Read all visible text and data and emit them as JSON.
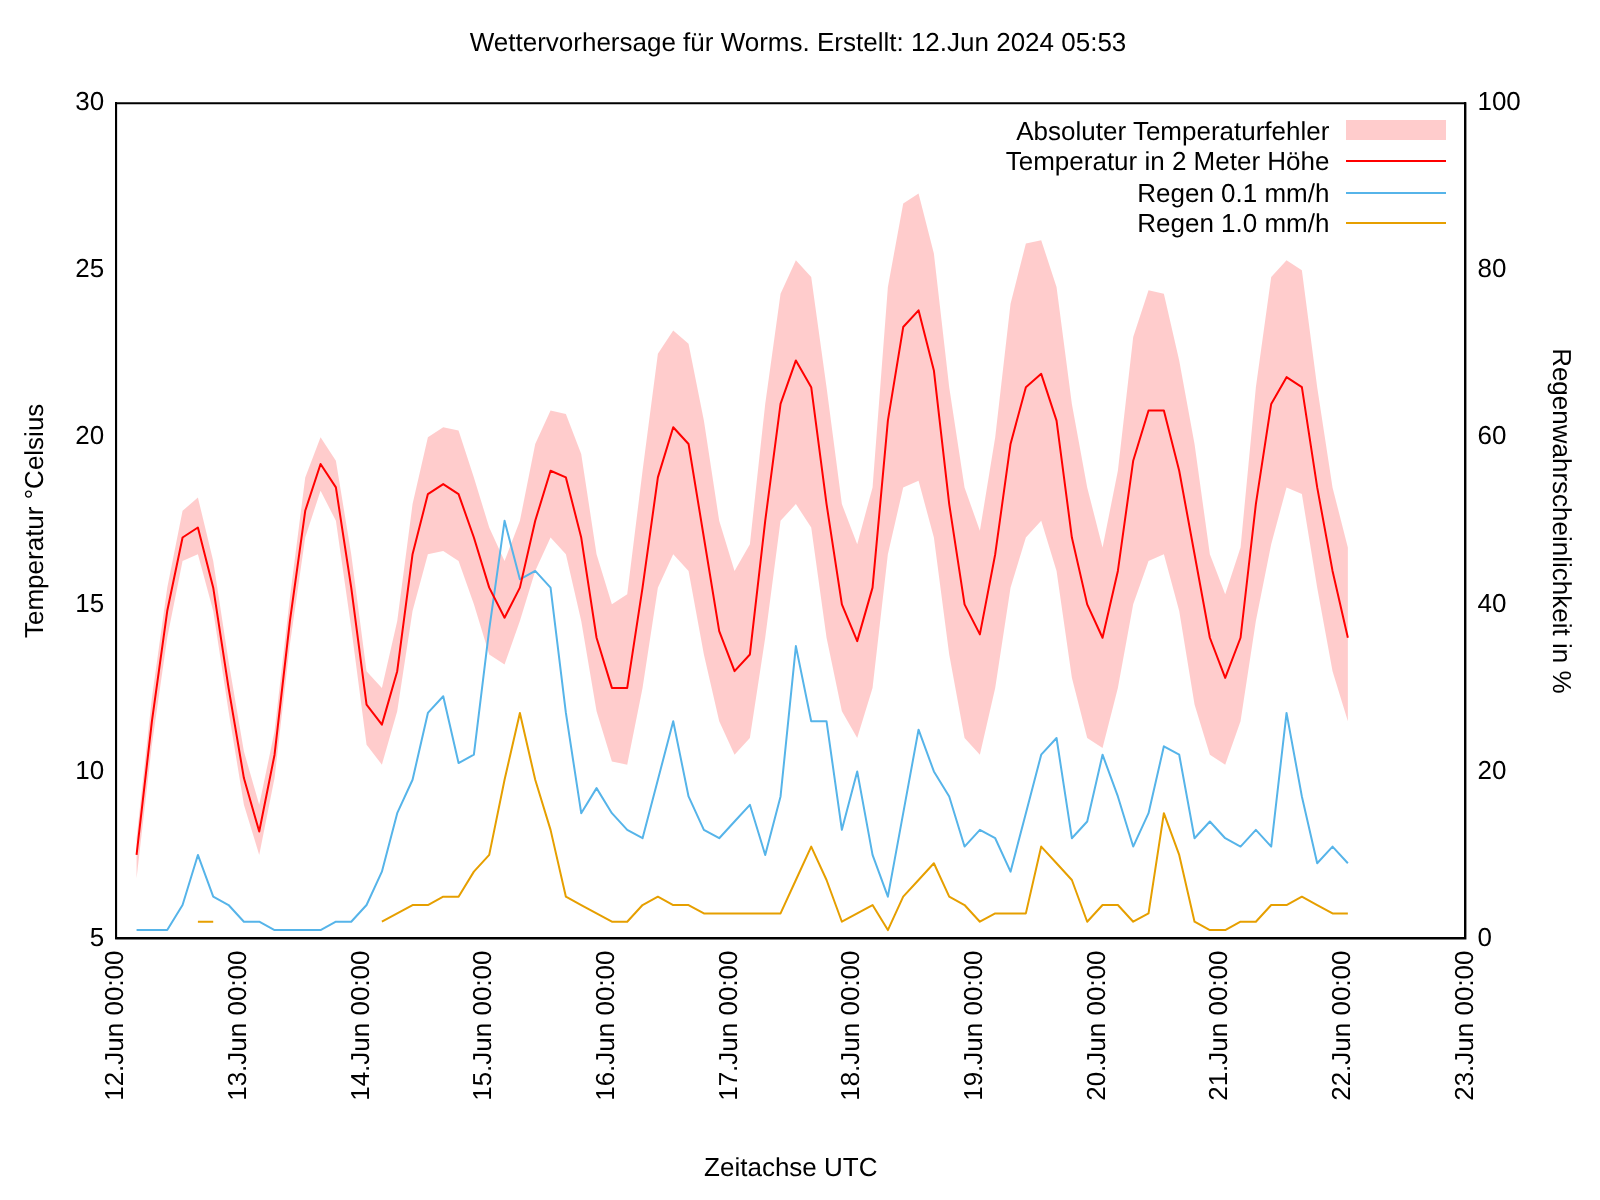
{
  "chart_data": {
    "type": "line",
    "title": "Wettervorhersage für Worms. Erstellt: 12.Jun 2024 05:53",
    "xlabel": "Zeitachse UTC",
    "ylabel": "Temperatur °Celsius",
    "y2label": "Regenwahrscheinlichkeit in %",
    "x": [
      "2024-06-12T04:00",
      "2024-06-12T07:00",
      "2024-06-12T10:00",
      "2024-06-12T13:00",
      "2024-06-12T16:00",
      "2024-06-12T19:00",
      "2024-06-12T22:00",
      "2024-06-13T01:00",
      "2024-06-13T04:00",
      "2024-06-13T07:00",
      "2024-06-13T10:00",
      "2024-06-13T13:00",
      "2024-06-13T16:00",
      "2024-06-13T19:00",
      "2024-06-13T22:00",
      "2024-06-14T01:00",
      "2024-06-14T04:00",
      "2024-06-14T07:00",
      "2024-06-14T10:00",
      "2024-06-14T13:00",
      "2024-06-14T16:00",
      "2024-06-14T19:00",
      "2024-06-14T22:00",
      "2024-06-15T01:00",
      "2024-06-15T04:00",
      "2024-06-15T07:00",
      "2024-06-15T10:00",
      "2024-06-15T13:00",
      "2024-06-15T16:00",
      "2024-06-15T19:00",
      "2024-06-15T22:00",
      "2024-06-16T01:00",
      "2024-06-16T04:00",
      "2024-06-16T07:00",
      "2024-06-16T10:00",
      "2024-06-16T13:00",
      "2024-06-16T16:00",
      "2024-06-16T19:00",
      "2024-06-16T22:00",
      "2024-06-17T01:00",
      "2024-06-17T04:00",
      "2024-06-17T07:00",
      "2024-06-17T10:00",
      "2024-06-17T13:00",
      "2024-06-17T16:00",
      "2024-06-17T19:00",
      "2024-06-17T22:00",
      "2024-06-18T01:00",
      "2024-06-18T04:00",
      "2024-06-18T07:00",
      "2024-06-18T10:00",
      "2024-06-18T13:00",
      "2024-06-18T16:00",
      "2024-06-18T19:00",
      "2024-06-18T22:00",
      "2024-06-19T01:00",
      "2024-06-19T04:00",
      "2024-06-19T07:00",
      "2024-06-19T10:00",
      "2024-06-19T13:00",
      "2024-06-19T16:00",
      "2024-06-19T19:00",
      "2024-06-19T22:00",
      "2024-06-20T01:00",
      "2024-06-20T04:00",
      "2024-06-20T07:00",
      "2024-06-20T10:00",
      "2024-06-20T13:00",
      "2024-06-20T16:00",
      "2024-06-20T19:00",
      "2024-06-20T22:00",
      "2024-06-21T01:00",
      "2024-06-21T04:00",
      "2024-06-21T07:00",
      "2024-06-21T10:00",
      "2024-06-21T13:00",
      "2024-06-21T16:00",
      "2024-06-21T19:00",
      "2024-06-21T22:00",
      "2024-06-22T01:00"
    ],
    "series": [
      {
        "name": "Temperatur in 2 Meter Höhe",
        "color": "#ff0000",
        "values": [
          7.5,
          11.5,
          14.8,
          17.0,
          17.3,
          15.5,
          12.5,
          9.8,
          8.2,
          10.5,
          14.5,
          17.8,
          19.2,
          18.5,
          15.5,
          12.0,
          11.4,
          13.0,
          16.5,
          18.3,
          18.6,
          18.3,
          17.0,
          15.5,
          14.6,
          15.5,
          17.5,
          19.0,
          18.8,
          17.0,
          14.0,
          12.5,
          12.5,
          15.5,
          18.8,
          20.3,
          19.8,
          17.0,
          14.2,
          13.0,
          13.5,
          17.5,
          21.0,
          22.3,
          21.5,
          18.0,
          15.0,
          13.9,
          15.5,
          20.5,
          23.3,
          23.8,
          22.0,
          18.0,
          15.0,
          14.1,
          16.5,
          19.8,
          21.5,
          21.9,
          20.5,
          17.0,
          15.0,
          14.0,
          16.0,
          19.3,
          20.8,
          20.8,
          19.0,
          16.5,
          14.0,
          12.8,
          14.0,
          18.0,
          21.0,
          21.8,
          21.5,
          18.5,
          16.0,
          14.0
        ],
        "lower": [
          6.8,
          10.8,
          14.0,
          16.3,
          16.5,
          14.8,
          11.8,
          9.0,
          7.5,
          9.8,
          13.8,
          17.0,
          18.4,
          17.5,
          14.3,
          10.8,
          10.2,
          11.8,
          14.8,
          16.5,
          16.6,
          16.3,
          15.0,
          13.5,
          13.2,
          14.5,
          16.0,
          17.0,
          16.5,
          14.5,
          11.8,
          10.3,
          10.2,
          12.5,
          15.5,
          16.5,
          16.0,
          13.5,
          11.5,
          10.5,
          11.0,
          14.0,
          17.5,
          18.0,
          17.3,
          14.0,
          11.8,
          11.0,
          12.5,
          16.5,
          18.5,
          18.7,
          17.0,
          13.5,
          11.0,
          10.5,
          12.5,
          15.5,
          17.0,
          17.5,
          16.0,
          12.8,
          11.0,
          10.7,
          12.5,
          15.0,
          16.3,
          16.5,
          14.8,
          12.0,
          10.5,
          10.2,
          11.5,
          14.5,
          16.8,
          18.5,
          18.3,
          15.5,
          13.0,
          11.5
        ],
        "upper": [
          8.0,
          12.2,
          15.5,
          17.8,
          18.2,
          16.3,
          13.3,
          10.6,
          9.0,
          11.2,
          15.2,
          18.8,
          20.0,
          19.3,
          16.5,
          13.0,
          12.5,
          14.5,
          18.0,
          20.0,
          20.3,
          20.2,
          18.8,
          17.3,
          16.3,
          17.5,
          19.8,
          20.8,
          20.7,
          19.5,
          16.5,
          15.0,
          15.3,
          19.0,
          22.5,
          23.2,
          22.8,
          20.5,
          17.5,
          16.0,
          16.8,
          21.0,
          24.3,
          25.3,
          24.8,
          21.5,
          18.0,
          16.8,
          18.5,
          24.5,
          27.0,
          27.3,
          25.5,
          21.5,
          18.5,
          17.2,
          20.0,
          24.0,
          25.8,
          25.9,
          24.5,
          21.0,
          18.5,
          16.7,
          19.0,
          23.0,
          24.4,
          24.3,
          22.3,
          19.8,
          16.5,
          15.3,
          16.7,
          21.5,
          24.8,
          25.3,
          25.0,
          21.5,
          18.5,
          16.7
        ]
      },
      {
        "name": "Regen 0.1 mm/h",
        "color": "#56b4e9",
        "axis": "y2",
        "values": [
          1,
          1,
          1,
          4,
          10,
          5,
          4,
          2,
          2,
          1,
          1,
          1,
          1,
          2,
          2,
          4,
          8,
          15,
          19,
          27,
          29,
          21,
          22,
          37,
          50,
          43,
          44,
          42,
          27,
          15,
          18,
          15,
          13,
          12,
          19,
          26,
          17,
          13,
          12,
          14,
          16,
          10,
          17,
          35,
          26,
          26,
          13,
          20,
          10,
          5,
          15,
          25,
          20,
          17,
          11,
          13,
          12,
          8,
          15,
          22,
          24,
          12,
          14,
          22,
          17,
          11,
          15,
          23,
          22,
          12,
          14,
          12,
          11,
          13,
          11,
          27,
          17,
          9,
          11,
          9
        ]
      },
      {
        "name": "Regen 1.0 mm/h",
        "color": "#e69f00",
        "axis": "y2",
        "values": [
          null,
          null,
          null,
          null,
          2,
          2,
          null,
          null,
          null,
          null,
          null,
          null,
          null,
          null,
          null,
          null,
          2,
          3,
          4,
          4,
          5,
          5,
          8,
          10,
          19,
          27,
          19,
          13,
          5,
          4,
          3,
          2,
          2,
          4,
          5,
          4,
          4,
          3,
          3,
          3,
          3,
          3,
          3,
          7,
          11,
          7,
          2,
          3,
          4,
          1,
          5,
          7,
          9,
          5,
          4,
          2,
          3,
          3,
          3,
          11,
          9,
          7,
          2,
          4,
          4,
          2,
          3,
          15,
          10,
          2,
          1,
          1,
          2,
          2,
          4,
          4,
          5,
          4,
          3,
          3
        ]
      }
    ],
    "xlim": [
      "2024-06-12T00:00",
      "2024-06-23T00:00"
    ],
    "xticks": [
      {
        "value": "2024-06-12T00:00",
        "label": "12.Jun 00:00"
      },
      {
        "value": "2024-06-13T00:00",
        "label": "13.Jun 00:00"
      },
      {
        "value": "2024-06-14T00:00",
        "label": "14.Jun 00:00"
      },
      {
        "value": "2024-06-15T00:00",
        "label": "15.Jun 00:00"
      },
      {
        "value": "2024-06-16T00:00",
        "label": "16.Jun 00:00"
      },
      {
        "value": "2024-06-17T00:00",
        "label": "17.Jun 00:00"
      },
      {
        "value": "2024-06-18T00:00",
        "label": "18.Jun 00:00"
      },
      {
        "value": "2024-06-19T00:00",
        "label": "19.Jun 00:00"
      },
      {
        "value": "2024-06-20T00:00",
        "label": "20.Jun 00:00"
      },
      {
        "value": "2024-06-21T00:00",
        "label": "21.Jun 00:00"
      },
      {
        "value": "2024-06-22T00:00",
        "label": "22.Jun 00:00"
      },
      {
        "value": "2024-06-23T00:00",
        "label": "23.Jun 00:00"
      }
    ],
    "ylim": [
      5,
      30
    ],
    "yticks": [
      5,
      10,
      15,
      20,
      25,
      30
    ],
    "y2lim": [
      0,
      100
    ],
    "y2ticks": [
      0,
      20,
      40,
      60,
      80,
      100
    ],
    "annotations": [
      "Absoluter Temperaturfehler"
    ],
    "grid": false,
    "legend": "top right",
    "marker": "none",
    "line_style": "solid"
  }
}
